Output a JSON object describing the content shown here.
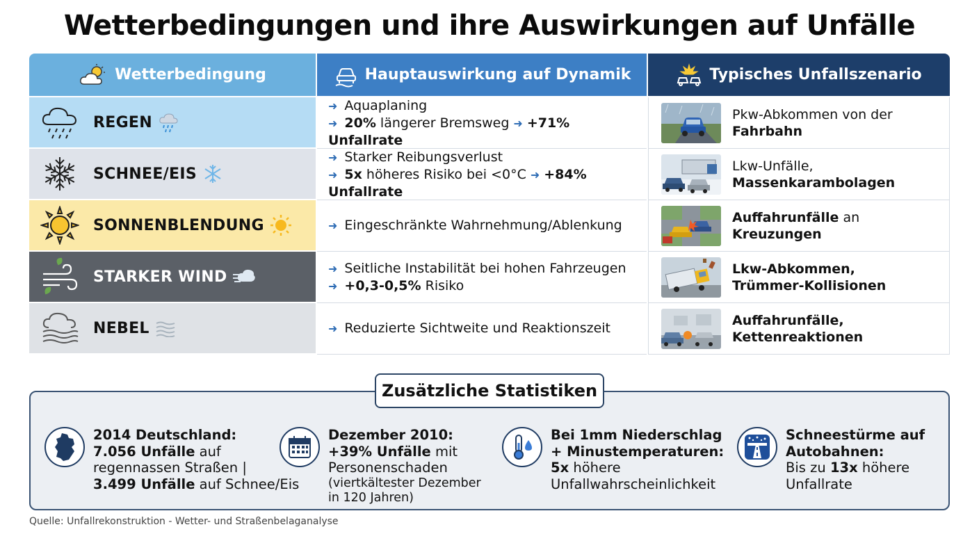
{
  "title": "Wetterbedingungen und ihre Auswirkungen auf Unfälle",
  "headers": {
    "condition": "Wetterbedingung",
    "effect": "Hauptauswirkung auf Dynamik",
    "scenario": "Typisches Unfallszenario"
  },
  "rows": [
    {
      "condition": "REGEN",
      "icon": "rain-cloud-icon",
      "effect": {
        "line1": "Aquaplaning",
        "l2_bold1": "20%",
        "l2_text": " längerer Bremsweg",
        "l2_bold2": "+71% Unfallrate"
      },
      "scenario": {
        "plain": "Pkw-Abkommen von der",
        "bold": "Fahrbahn"
      }
    },
    {
      "condition": "SCHNEE/EIS",
      "icon": "snowflake-icon",
      "effect": {
        "line1": "Starker Reibungsverlust",
        "l2_bold1": "5x",
        "l2_text": " höheres Risiko bei <0°C",
        "l2_bold2": "+84% Unfallrate"
      },
      "scenario": {
        "plain": "Lkw-Unfälle,",
        "bold": "Massenkarambolagen"
      }
    },
    {
      "condition": "SONNENBLENDUNG",
      "icon": "sun-icon",
      "effect": {
        "line1": "Eingeschränkte Wahrnehmung/Ablenkung"
      },
      "scenario": {
        "bold1": "Auffahrunfälle",
        "plain": " an",
        "bold": "Kreuzungen"
      }
    },
    {
      "condition": "STARKER WIND",
      "icon": "wind-icon",
      "effect": {
        "line1": "Seitliche Instabilität bei hohen Fahrzeugen",
        "l2_bold1": "+0,3-0,5%",
        "l2_text": " Risiko"
      },
      "scenario": {
        "bold1": "Lkw-Abkommen,",
        "bold": "Trümmer-Kollisionen"
      }
    },
    {
      "condition": "NEBEL",
      "icon": "fog-icon",
      "effect": {
        "line1": "Reduzierte Sichtweite und Reaktionszeit"
      },
      "scenario": {
        "bold1": "Auffahrunfälle,",
        "bold": "Kettenreaktionen"
      }
    }
  ],
  "stats_title": "Zusätzliche Statistiken",
  "stats": [
    {
      "icon": "germany-map-icon",
      "head": "2014 Deutschland:",
      "b1": "7.056 Unfälle",
      "t1": " auf",
      "t2": "regennassen Straßen |",
      "b2": "3.499 Unfälle",
      "t3": " auf Schnee/Eis"
    },
    {
      "icon": "calendar-icon",
      "head": "Dezember 2010:",
      "b1": "+39% Unfälle",
      "t1": " mit",
      "t2": "Personenschaden",
      "small": "(viertkältester Dezember in 120 Jahren)"
    },
    {
      "icon": "thermometer-icon",
      "head": "Bei 1mm Niederschlag + Minustemperaturen:",
      "b1": "5x",
      "t1": " höhere",
      "t2": "Unfallwahrscheinlichkeit"
    },
    {
      "icon": "snowy-highway-icon",
      "head": "Schneestürme auf Autobahnen:",
      "t0": "Bis zu ",
      "b1": "13x",
      "t1": " höhere",
      "t2": "Unfallrate"
    }
  ],
  "source": "Quelle: Unfallrekonstruktion - Wetter- und Straßenbelaganalyse",
  "colors": {
    "header_condition": "#6bb0de",
    "header_effect": "#3d7fc5",
    "header_scenario": "#1d3e6a",
    "rain": "#b5dcf4",
    "snow": "#dfe3ea",
    "sun": "#fbe9a8",
    "wind": "#5b6067",
    "fog": "#dfe2e6",
    "arrow": "#2f6db5"
  }
}
